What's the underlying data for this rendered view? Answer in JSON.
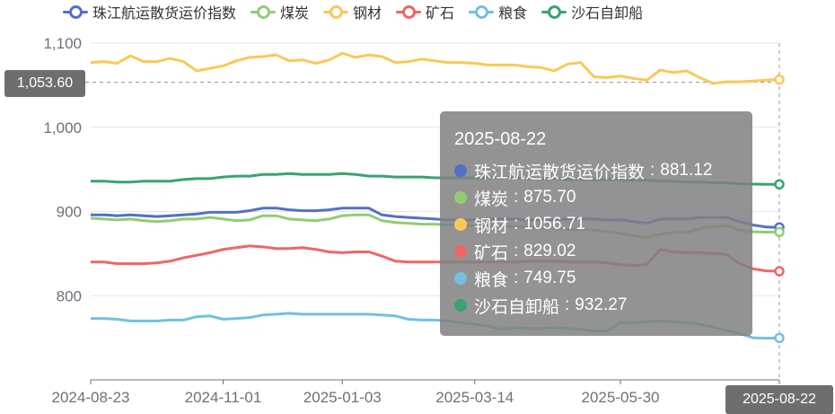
{
  "legend": [
    {
      "name": "珠江航运散货运价指数",
      "color": "#5470c6"
    },
    {
      "name": "煤炭",
      "color": "#91cc75"
    },
    {
      "name": "钢材",
      "color": "#fac858"
    },
    {
      "name": "矿石",
      "color": "#ee6666"
    },
    {
      "name": "粮食",
      "color": "#73c0de"
    },
    {
      "name": "沙石自卸船",
      "color": "#3ba272"
    }
  ],
  "axis_pointer": {
    "y_label": "1,053.60",
    "x_label": "2025-08-22"
  },
  "tooltip": {
    "date": "2025-08-22",
    "rows": [
      {
        "name": "珠江航运散货运价指数",
        "value": "881.12",
        "color": "#5470c6"
      },
      {
        "name": "煤炭",
        "value": "875.70",
        "color": "#91cc75"
      },
      {
        "name": "钢材",
        "value": "1056.71",
        "color": "#fac858"
      },
      {
        "name": "矿石",
        "value": "829.02",
        "color": "#ee6666"
      },
      {
        "name": "粮食",
        "value": "749.75",
        "color": "#73c0de"
      },
      {
        "name": "沙石自卸船",
        "value": "932.27",
        "color": "#3ba272"
      }
    ]
  },
  "chart_data": {
    "type": "line",
    "x": [
      "2024-08-23",
      "2024-08-30",
      "2024-09-06",
      "2024-09-13",
      "2024-09-20",
      "2024-09-27",
      "2024-10-04",
      "2024-10-11",
      "2024-10-18",
      "2024-10-25",
      "2024-11-01",
      "2024-11-08",
      "2024-11-15",
      "2024-11-22",
      "2024-11-29",
      "2024-12-06",
      "2024-12-13",
      "2024-12-20",
      "2024-12-27",
      "2025-01-03",
      "2025-01-10",
      "2025-01-17",
      "2025-01-24",
      "2025-01-31",
      "2025-02-07",
      "2025-02-14",
      "2025-02-21",
      "2025-02-28",
      "2025-03-07",
      "2025-03-14",
      "2025-03-21",
      "2025-03-28",
      "2025-04-04",
      "2025-04-11",
      "2025-04-18",
      "2025-04-25",
      "2025-05-02",
      "2025-05-09",
      "2025-05-16",
      "2025-05-23",
      "2025-05-30",
      "2025-06-06",
      "2025-06-13",
      "2025-06-20",
      "2025-06-27",
      "2025-07-04",
      "2025-07-11",
      "2025-07-18",
      "2025-07-25",
      "2025-08-01",
      "2025-08-08",
      "2025-08-15",
      "2025-08-22"
    ],
    "x_ticks": [
      "2024-08-23",
      "2024-11-01",
      "2025-01-03",
      "2025-03-14",
      "2025-05-30",
      "2025-08-22"
    ],
    "y_ticks": [
      "1,100",
      "1,000",
      "900",
      "800"
    ],
    "ylim": [
      700,
      1100
    ],
    "series": [
      {
        "name": "珠江航运散货运价指数",
        "color": "#5470c6",
        "values": [
          896,
          896,
          895,
          896,
          895,
          894,
          895,
          896,
          897,
          899,
          899,
          899,
          901,
          904,
          904,
          902,
          901,
          901,
          902,
          904,
          904,
          904,
          896,
          894,
          893,
          892,
          891,
          890,
          890,
          890,
          891,
          891,
          891,
          890,
          890,
          890,
          891,
          891,
          891,
          890,
          890,
          888,
          886,
          891,
          891,
          891,
          893,
          893,
          893,
          888,
          884,
          881.5,
          881.12
        ]
      },
      {
        "name": "煤炭",
        "color": "#91cc75",
        "values": [
          892,
          891,
          890,
          891,
          889,
          888,
          889,
          891,
          891,
          893,
          891,
          889,
          890,
          895,
          895,
          891,
          890,
          889,
          891,
          895,
          896,
          896,
          889,
          887,
          886,
          885,
          885,
          884,
          884,
          883,
          883,
          883,
          882,
          881,
          880,
          880,
          879,
          879,
          878,
          876,
          874,
          871,
          869,
          873,
          875,
          875,
          880,
          882,
          883,
          878,
          876,
          875.5,
          875.7
        ]
      },
      {
        "name": "钢材",
        "color": "#fac858",
        "values": [
          1077,
          1078,
          1076,
          1085,
          1078,
          1078,
          1082,
          1078,
          1067,
          1070,
          1073,
          1079,
          1083,
          1084,
          1086,
          1079,
          1080,
          1076,
          1080,
          1088,
          1083,
          1086,
          1084,
          1077,
          1078,
          1081,
          1079,
          1077,
          1077,
          1076,
          1074,
          1074,
          1074,
          1072,
          1071,
          1067,
          1075,
          1077,
          1060,
          1059,
          1061,
          1058,
          1056,
          1068,
          1065,
          1067,
          1059,
          1052,
          1054,
          1054,
          1055,
          1056,
          1056.71
        ]
      },
      {
        "name": "矿石",
        "color": "#ee6666",
        "values": [
          840,
          840,
          838,
          838,
          838,
          839,
          841,
          845,
          848,
          851,
          855,
          857,
          859,
          858,
          856,
          856,
          857,
          855,
          852,
          851,
          852,
          852,
          847,
          841,
          840,
          840,
          840,
          840,
          840,
          840,
          840,
          840,
          840,
          841,
          841,
          841,
          840,
          840,
          840,
          839,
          837,
          836,
          837,
          855,
          852,
          851,
          851,
          850,
          849,
          838,
          832,
          829.5,
          829.02
        ]
      },
      {
        "name": "粮食",
        "color": "#73c0de",
        "values": [
          773,
          773,
          772,
          770,
          770,
          770,
          771,
          771,
          775,
          776,
          772,
          773,
          774,
          777,
          778,
          779,
          778,
          778,
          778,
          778,
          778,
          778,
          777,
          776,
          772,
          771,
          771,
          770,
          768,
          766,
          764,
          760,
          762,
          761,
          761,
          762,
          761,
          760,
          758,
          758,
          768,
          768,
          769,
          770,
          769,
          768,
          766,
          763,
          759,
          755,
          750,
          749.5,
          749.75
        ]
      },
      {
        "name": "沙石自卸船",
        "color": "#3ba272",
        "values": [
          936,
          936,
          935,
          935,
          936,
          936,
          936,
          938,
          939,
          939,
          941,
          942,
          942,
          944,
          944,
          945,
          944,
          944,
          944,
          945,
          944,
          942,
          942,
          941,
          941,
          941,
          940,
          940,
          940,
          940,
          940,
          940,
          940,
          939,
          939,
          939,
          938,
          938,
          938,
          938,
          938,
          937,
          937,
          936,
          936,
          935,
          935,
          934,
          934,
          933,
          932.5,
          932.3,
          932.27
        ]
      }
    ]
  }
}
